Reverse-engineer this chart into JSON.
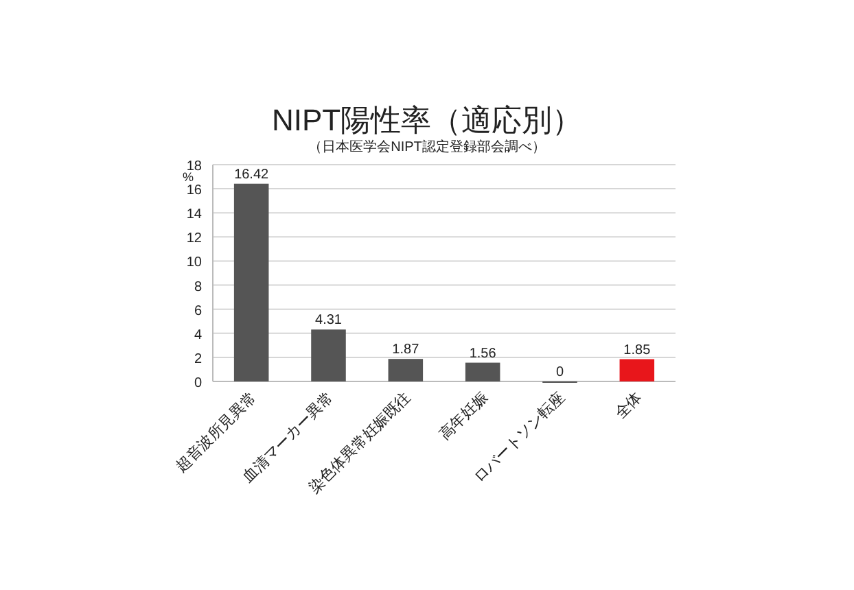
{
  "chart_data": {
    "type": "bar",
    "title": "NIPT陽性率（適応別）",
    "subtitle": "（日本医学会NIPT認定登録部会調べ）",
    "ylabel": "%",
    "categories": [
      "超音波所見異常",
      "血清マーカー異常",
      "染色体異常妊娠既往",
      "高年妊娠",
      "ロバートソン転座",
      "全体"
    ],
    "values": [
      16.42,
      4.31,
      1.87,
      1.56,
      0,
      1.85
    ],
    "colors": [
      "#555555",
      "#555555",
      "#555555",
      "#555555",
      "#555555",
      "#e8161b"
    ],
    "value_labels": [
      "16.42",
      "4.31",
      "1.87",
      "1.56",
      "0",
      "1.85"
    ],
    "ylim": [
      0,
      18
    ],
    "yticks": [
      0,
      2,
      4,
      6,
      8,
      10,
      12,
      14,
      16,
      18
    ],
    "grid": "y"
  }
}
